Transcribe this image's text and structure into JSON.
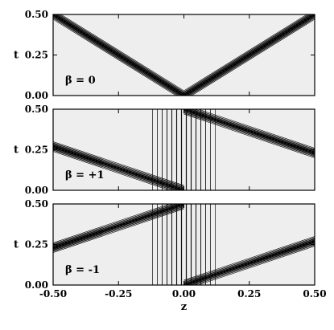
{
  "chart_data": [
    {
      "type": "contour",
      "annotation": "β = 0",
      "ylabel": "t",
      "xlabel": "",
      "xlim": [
        -0.5,
        0.5
      ],
      "ylim": [
        0.0,
        0.5
      ],
      "yticks": [
        "0.00",
        "0.25",
        "0.50"
      ],
      "xticks": [
        "",
        "",
        "",
        "",
        ""
      ],
      "features": [
        {
          "kind": "soliton",
          "path": [
            [
              -0.5,
              0.5
            ],
            [
              0.0,
              0.0
            ],
            [
              0.5,
              0.5
            ]
          ],
          "note": "two mirrored solitons meeting at z=0, t=0"
        }
      ]
    },
    {
      "type": "contour",
      "annotation": "β = +1",
      "ylabel": "t",
      "xlabel": "",
      "xlim": [
        -0.5,
        0.5
      ],
      "ylim": [
        0.0,
        0.5
      ],
      "yticks": [
        "0.00",
        "0.25",
        "0.50"
      ],
      "xticks": [
        "",
        "",
        "",
        "",
        ""
      ],
      "features": [
        {
          "kind": "soliton",
          "path": [
            [
              -0.5,
              0.27
            ],
            [
              0.0,
              0.0
            ]
          ]
        },
        {
          "kind": "soliton",
          "path": [
            [
              0.0,
              0.5
            ],
            [
              0.5,
              0.23
            ]
          ]
        },
        {
          "kind": "step",
          "zrange": [
            -0.12,
            0.12
          ]
        }
      ]
    },
    {
      "type": "contour",
      "annotation": "β = -1",
      "ylabel": "t",
      "xlabel": "z",
      "xlim": [
        -0.5,
        0.5
      ],
      "ylim": [
        0.0,
        0.5
      ],
      "yticks": [
        "0.00",
        "0.25",
        "0.50"
      ],
      "xticks": [
        "-0.50",
        "-0.25",
        "0.00",
        "0.25",
        "0.50"
      ],
      "features": [
        {
          "kind": "soliton",
          "path": [
            [
              -0.5,
              0.23
            ],
            [
              0.0,
              0.5
            ]
          ]
        },
        {
          "kind": "soliton",
          "path": [
            [
              0.0,
              0.0
            ],
            [
              0.5,
              0.27
            ]
          ]
        },
        {
          "kind": "step",
          "zrange": [
            -0.12,
            0.12
          ]
        }
      ]
    }
  ]
}
